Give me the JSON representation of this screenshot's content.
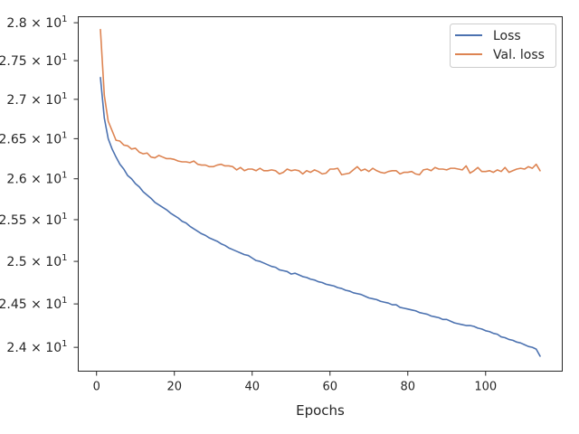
{
  "chart_data": {
    "type": "line",
    "xlabel": "Epochs",
    "ylabel": "",
    "xlim": [
      -4.7,
      119.7
    ],
    "ylim": [
      23.73,
      28.08
    ],
    "y_scale": "log",
    "grid": false,
    "legend_placement": "top-right",
    "x_ticks": [
      0,
      20,
      40,
      60,
      80,
      100
    ],
    "x_tick_labels": [
      "0",
      "20",
      "40",
      "60",
      "80",
      "100"
    ],
    "y_ticks": [
      24.0,
      24.5,
      25.0,
      25.5,
      26.0,
      26.5,
      27.0,
      27.5,
      28.0
    ],
    "y_tick_labels": [
      {
        "base": "2.4 × 10",
        "exp": "1"
      },
      {
        "base": "2.45 × 10",
        "exp": "1"
      },
      {
        "base": "2.5 × 10",
        "exp": "1"
      },
      {
        "base": "2.55 × 10",
        "exp": "1"
      },
      {
        "base": "2.6 × 10",
        "exp": "1"
      },
      {
        "base": "2.65 × 10",
        "exp": "1"
      },
      {
        "base": "2.7 × 10",
        "exp": "1"
      },
      {
        "base": "2.75 × 10",
        "exp": "1"
      },
      {
        "base": "2.8 × 10",
        "exp": "1"
      }
    ],
    "series": [
      {
        "name": "Loss",
        "color": "#4c72b0",
        "x_start": 1,
        "values": [
          27.28,
          26.76,
          26.5,
          26.37,
          26.27,
          26.18,
          26.12,
          26.04,
          26.0,
          25.94,
          25.9,
          25.84,
          25.8,
          25.76,
          25.71,
          25.68,
          25.65,
          25.62,
          25.58,
          25.55,
          25.52,
          25.48,
          25.46,
          25.42,
          25.39,
          25.36,
          25.33,
          25.31,
          25.28,
          25.26,
          25.24,
          25.21,
          25.19,
          25.16,
          25.14,
          25.12,
          25.1,
          25.08,
          25.07,
          25.04,
          25.01,
          25.0,
          24.98,
          24.96,
          24.94,
          24.93,
          24.9,
          24.89,
          24.88,
          24.85,
          24.86,
          24.84,
          24.82,
          24.81,
          24.79,
          24.78,
          24.76,
          24.75,
          24.73,
          24.72,
          24.71,
          24.69,
          24.68,
          24.66,
          24.65,
          24.63,
          24.62,
          24.61,
          24.59,
          24.57,
          24.56,
          24.55,
          24.53,
          24.52,
          24.51,
          24.49,
          24.49,
          24.46,
          24.45,
          24.44,
          24.43,
          24.42,
          24.4,
          24.39,
          24.38,
          24.36,
          24.35,
          24.34,
          24.32,
          24.32,
          24.3,
          24.28,
          24.27,
          24.26,
          24.25,
          24.25,
          24.24,
          24.22,
          24.21,
          24.19,
          24.18,
          24.16,
          24.15,
          24.12,
          24.11,
          24.09,
          24.08,
          24.06,
          24.05,
          24.03,
          24.01,
          24.0,
          23.98,
          23.9
        ]
      },
      {
        "name": "Val. loss",
        "color": "#dd8452",
        "x_start": 1,
        "values": [
          27.91,
          27.05,
          26.72,
          26.6,
          26.48,
          26.47,
          26.42,
          26.41,
          26.37,
          26.38,
          26.33,
          26.31,
          26.32,
          26.27,
          26.26,
          26.29,
          26.27,
          26.25,
          26.25,
          26.24,
          26.22,
          26.21,
          26.21,
          26.2,
          26.22,
          26.18,
          26.17,
          26.17,
          26.15,
          26.15,
          26.17,
          26.18,
          26.16,
          26.16,
          26.15,
          26.11,
          26.14,
          26.1,
          26.12,
          26.12,
          26.1,
          26.13,
          26.1,
          26.1,
          26.11,
          26.1,
          26.06,
          26.08,
          26.12,
          26.1,
          26.11,
          26.1,
          26.06,
          26.1,
          26.08,
          26.11,
          26.09,
          26.06,
          26.07,
          26.12,
          26.12,
          26.13,
          26.05,
          26.06,
          26.07,
          26.11,
          26.15,
          26.1,
          26.12,
          26.09,
          26.13,
          26.1,
          26.08,
          26.07,
          26.09,
          26.1,
          26.1,
          26.06,
          26.08,
          26.08,
          26.09,
          26.06,
          26.05,
          26.11,
          26.12,
          26.1,
          26.14,
          26.12,
          26.12,
          26.11,
          26.13,
          26.13,
          26.12,
          26.11,
          26.16,
          26.07,
          26.1,
          26.14,
          26.09,
          26.09,
          26.1,
          26.08,
          26.11,
          26.09,
          26.14,
          26.08,
          26.1,
          26.12,
          26.13,
          26.12,
          26.15,
          26.13,
          26.18,
          26.1
        ]
      }
    ]
  }
}
